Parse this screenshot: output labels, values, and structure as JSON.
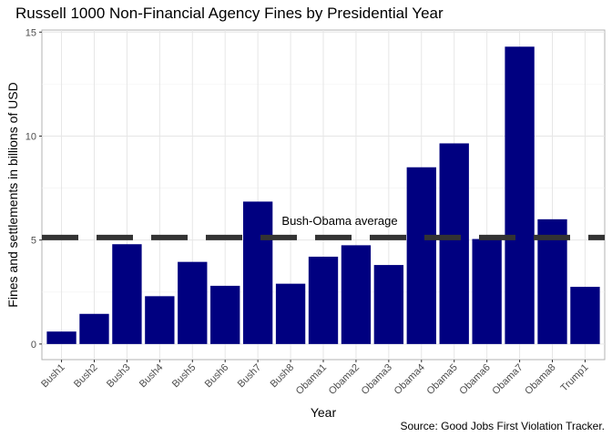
{
  "chart_data": {
    "type": "bar",
    "title": "Russell 1000 Non-Financial Agency Fines by Presidential Year",
    "xlabel": "Year",
    "ylabel": "Fines and settlements in billions of USD",
    "caption": "Source: Good Jobs First Violation Tracker.",
    "categories": [
      "Bush1",
      "Bush2",
      "Bush3",
      "Bush4",
      "Bush5",
      "Bush6",
      "Bush7",
      "Bush8",
      "Obama1",
      "Obama2",
      "Obama3",
      "Obama4",
      "Obama5",
      "Obama6",
      "Obama7",
      "Obama8",
      "Trump1"
    ],
    "values": [
      0.6,
      1.45,
      4.8,
      2.3,
      3.95,
      2.8,
      6.85,
      2.9,
      4.2,
      4.75,
      3.8,
      8.5,
      9.65,
      5.05,
      14.3,
      6.0,
      2.75
    ],
    "ylim": [
      -0.75,
      15.1
    ],
    "yticks": [
      0,
      5,
      10,
      15
    ],
    "bar_color": "#000080",
    "grid": true,
    "average_line": {
      "value": 5.12,
      "label": "Bush-Obama average",
      "color": "#333333"
    }
  }
}
